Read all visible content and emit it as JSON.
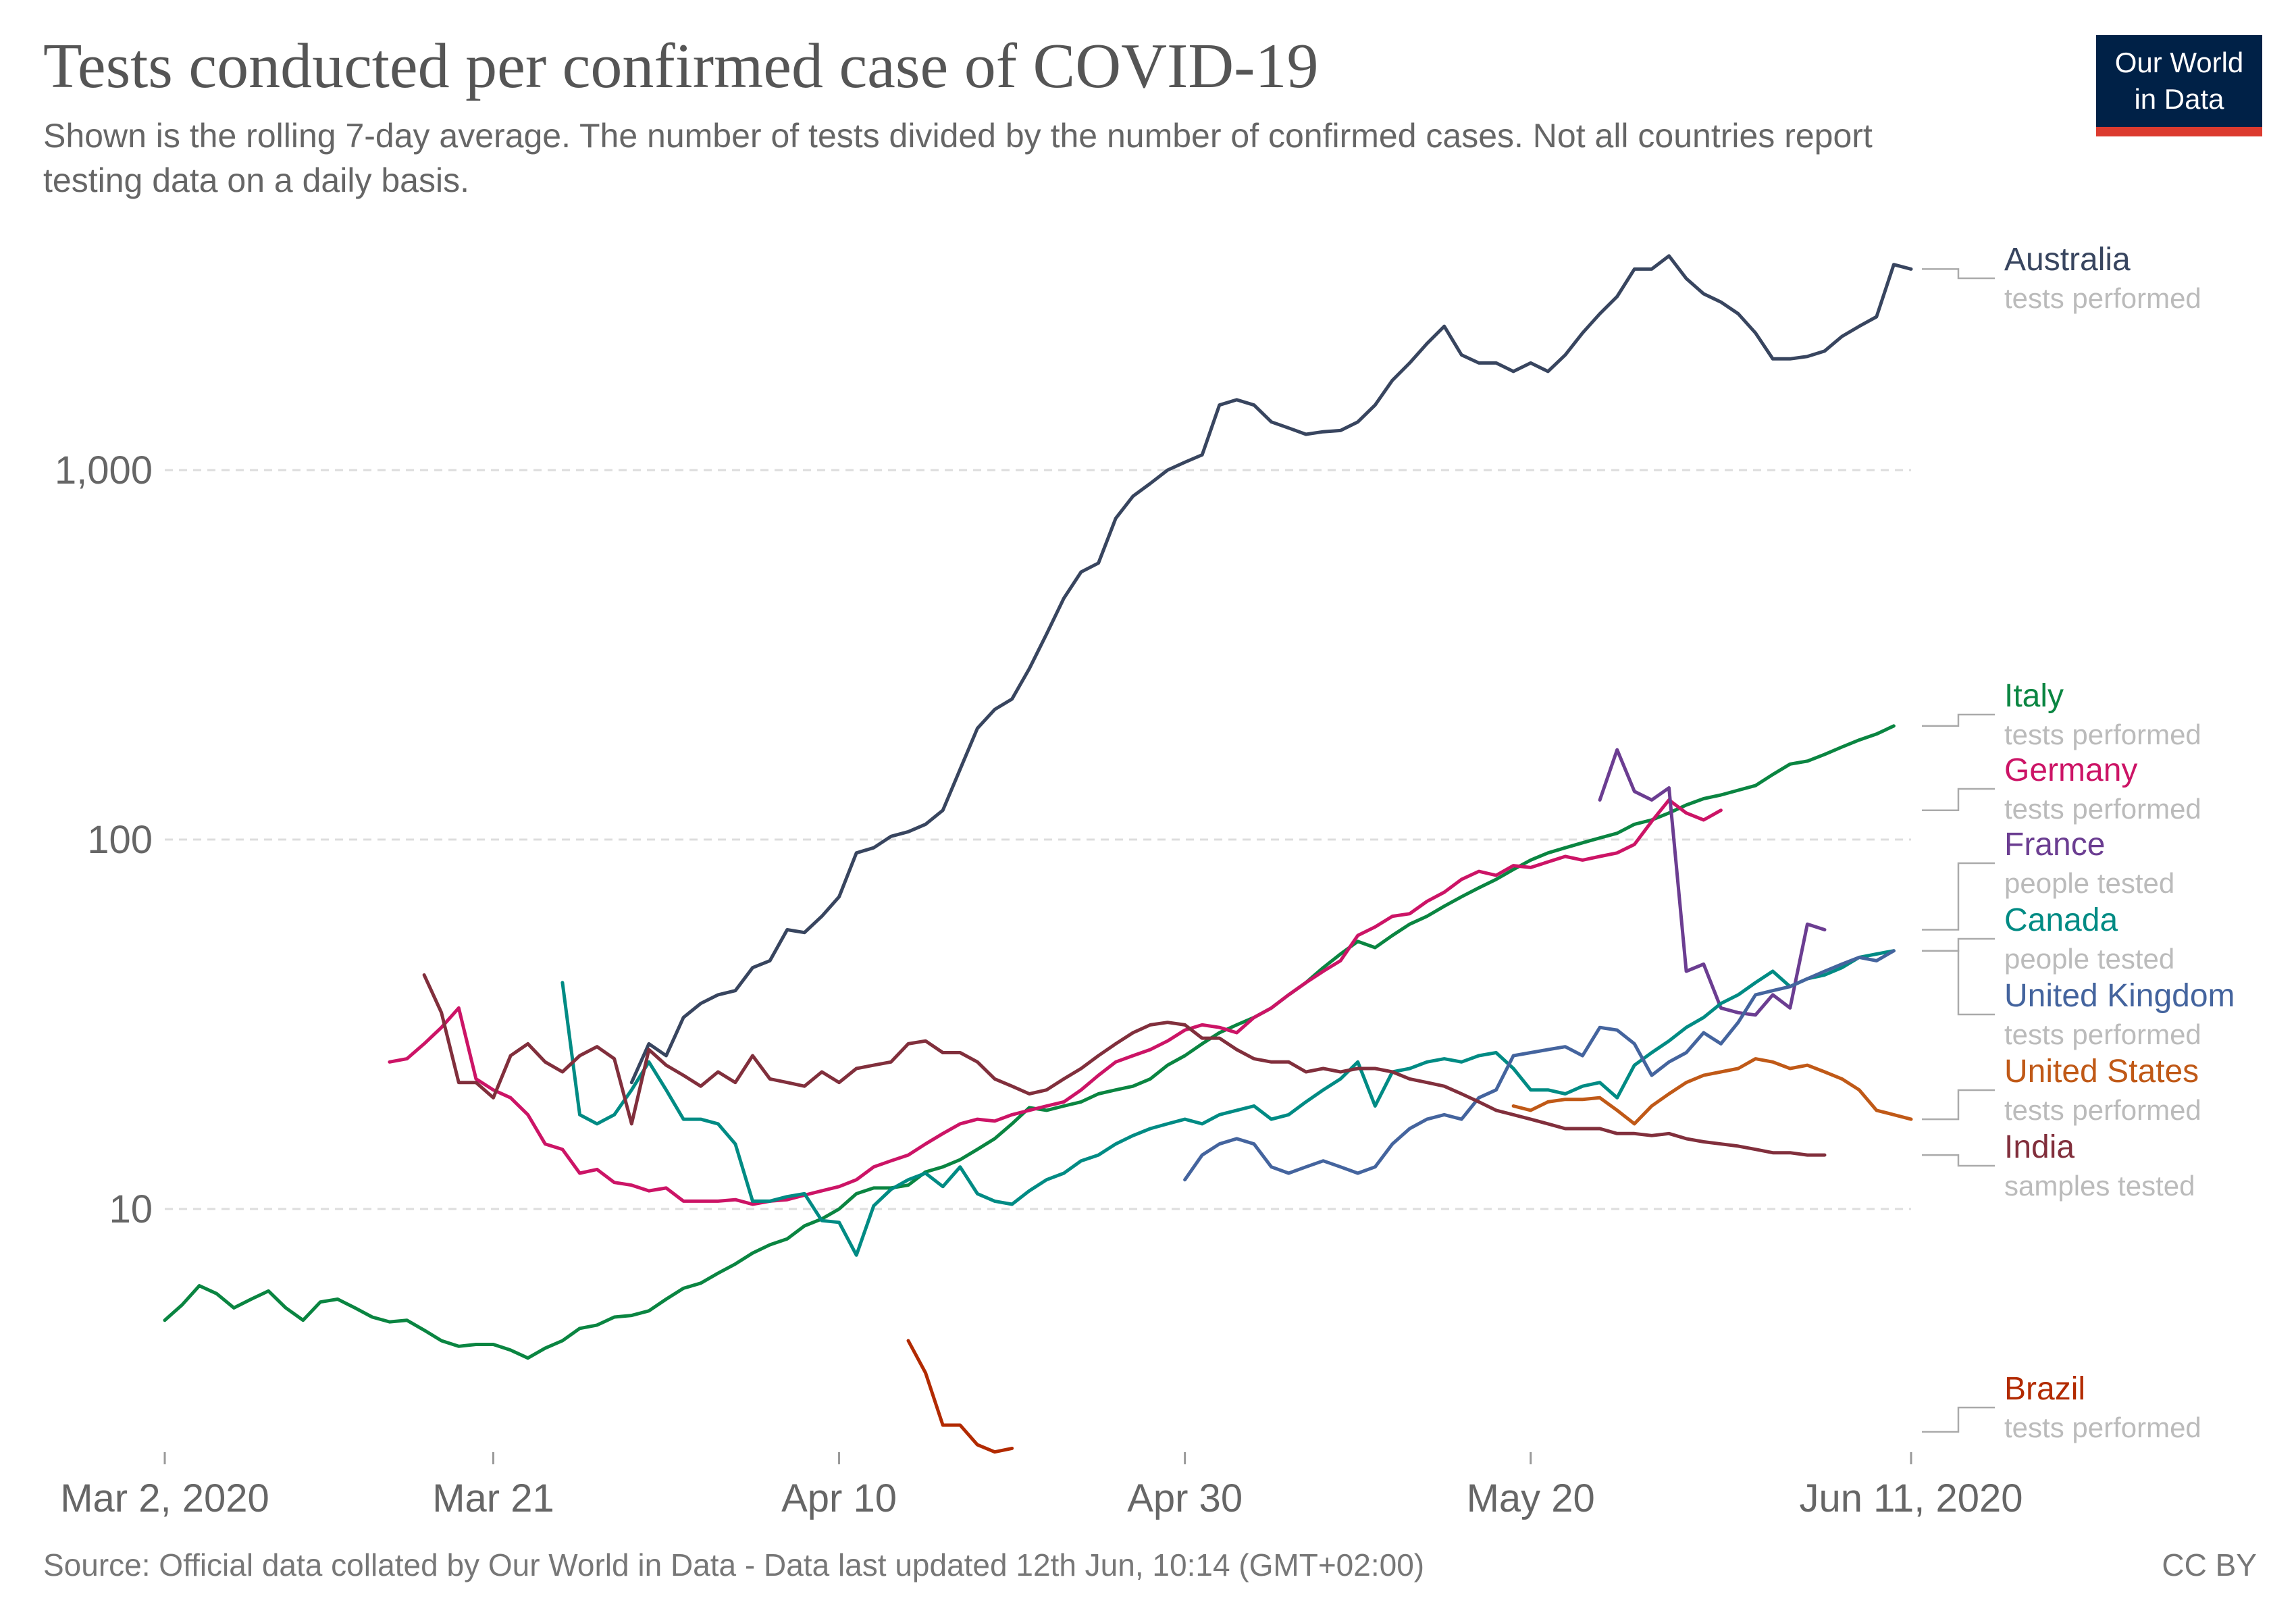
{
  "header": {
    "title": "Tests conducted per confirmed case of COVID-19",
    "subtitle": "Shown is the rolling 7-day average. The number of tests divided by the number of confirmed cases. Not all countries report testing data on a daily basis.",
    "logo_line1": "Our World",
    "logo_line2": "in Data"
  },
  "footer": {
    "source": "Source: Official data collated by Our World in Data - Data last updated 12th Jun, 10:14 (GMT+02:00)",
    "license": "CC BY"
  },
  "colors": {
    "Australia": "#38455f",
    "Italy": "#0a8541",
    "Germany": "#cc1466",
    "France": "#6b3d91",
    "Canada": "#008b84",
    "United Kingdom": "#44649e",
    "United States": "#c05917",
    "India": "#812f3c",
    "Brazil": "#b22a00"
  },
  "chart_data": {
    "type": "line",
    "title": "Tests conducted per confirmed case of COVID-19",
    "y_scale": "log",
    "ylim": [
      2.3,
      5200
    ],
    "y_ticks": [
      {
        "value": 10,
        "label": "10"
      },
      {
        "value": 100,
        "label": "100"
      },
      {
        "value": 1000,
        "label": "1,000"
      }
    ],
    "x_ticks": [
      {
        "date": "2020-03-02",
        "label": "Mar 2, 2020"
      },
      {
        "date": "2020-03-21",
        "label": "Mar 21"
      },
      {
        "date": "2020-04-10",
        "label": "Apr 10"
      },
      {
        "date": "2020-04-30",
        "label": "Apr 30"
      },
      {
        "date": "2020-05-20",
        "label": "May 20"
      },
      {
        "date": "2020-06-11",
        "label": "Jun 11, 2020"
      }
    ],
    "xlim": [
      "2020-03-02",
      "2020-06-11"
    ],
    "grid": "horizontal dashed",
    "legend": "right, labels at line ends",
    "series": [
      {
        "name": "Australia",
        "metric": "tests performed",
        "start": "2020-03-29",
        "values": [
          22,
          28,
          26,
          33,
          36,
          38,
          39,
          45,
          47,
          57,
          56,
          62,
          70,
          92,
          95,
          102,
          105,
          110,
          120,
          155,
          200,
          225,
          240,
          290,
          360,
          450,
          530,
          560,
          740,
          850,
          920,
          1000,
          1050,
          1100,
          1500,
          1550,
          1500,
          1350,
          1300,
          1250,
          1270,
          1280,
          1350,
          1500,
          1750,
          1950,
          2200,
          2450,
          2050,
          1950,
          1950,
          1850,
          1950,
          1850,
          2050,
          2350,
          2650,
          2950,
          3500,
          3500,
          3800,
          3300,
          3000,
          2850,
          2650,
          2350,
          2000,
          2000,
          2030,
          2100,
          2300,
          2450,
          2600,
          3600,
          3500
        ]
      },
      {
        "name": "Italy",
        "metric": "tests performed",
        "start": "2020-03-02",
        "values": [
          5.0,
          5.5,
          6.2,
          5.9,
          5.4,
          5.7,
          6.0,
          5.4,
          5.0,
          5.6,
          5.7,
          5.4,
          5.1,
          4.95,
          5.0,
          4.7,
          4.4,
          4.25,
          4.3,
          4.3,
          4.15,
          3.95,
          4.2,
          4.4,
          4.75,
          4.85,
          5.1,
          5.15,
          5.3,
          5.7,
          6.1,
          6.3,
          6.7,
          7.1,
          7.6,
          8.0,
          8.3,
          9.0,
          9.4,
          10.0,
          11.0,
          11.4,
          11.4,
          11.6,
          12.6,
          13.0,
          13.6,
          14.5,
          15.5,
          17.0,
          18.8,
          18.5,
          19.0,
          19.5,
          20.5,
          21.0,
          21.5,
          22.5,
          24.5,
          26.0,
          28.0,
          30.0,
          31.5,
          33.0,
          35.0,
          38.0,
          41.0,
          45.0,
          49.0,
          53.0,
          51.0,
          55.0,
          59.0,
          62.0,
          66.0,
          70.0,
          74.0,
          78.0,
          83.0,
          88.0,
          92.0,
          95.0,
          98.0,
          101.0,
          104.0,
          110.0,
          113.0,
          118.0,
          124.0,
          129.0,
          132.0,
          136.0,
          140.0,
          150.0,
          160.0,
          163.0,
          170.0,
          178.0,
          186.0,
          193.0,
          203.0
        ]
      },
      {
        "name": "Germany",
        "metric": "tests performed",
        "start": "2020-03-15",
        "values": [
          25.0,
          25.5,
          28.0,
          31.0,
          35.0,
          22.5,
          21.0,
          20.0,
          18.0,
          15.0,
          14.5,
          12.5,
          12.8,
          11.8,
          11.6,
          11.2,
          11.4,
          10.5,
          10.5,
          10.5,
          10.6,
          10.3,
          10.5,
          10.6,
          10.9,
          11.2,
          11.5,
          12.0,
          13.0,
          13.5,
          14.0,
          15.0,
          16.0,
          17.0,
          17.5,
          17.3,
          18.0,
          18.5,
          19.0,
          19.5,
          21.0,
          23.0,
          25.0,
          26.0,
          27.0,
          28.5,
          30.5,
          31.5,
          31.0,
          30.0,
          33.0,
          35.0,
          38.0,
          41.0,
          44.0,
          47.0,
          55.0,
          58.0,
          62.0,
          63.0,
          68.0,
          72.0,
          78.0,
          82.0,
          80.0,
          85.0,
          84.0,
          87.0,
          90.0,
          88.0,
          90.0,
          92.0,
          97.0,
          112.0,
          128.0,
          118.0,
          113.0,
          120.0
        ]
      },
      {
        "name": "France",
        "metric": "people tested",
        "start": "2020-05-24",
        "values": [
          128.0,
          175.0,
          135.0,
          128.0,
          138.0,
          44.0,
          46.0,
          35.0,
          34.0,
          33.5,
          38.0,
          35.0,
          59.0,
          57.0
        ]
      },
      {
        "name": "Canada",
        "metric": "people tested",
        "start": "2020-03-25",
        "values": [
          41.0,
          18.0,
          17.0,
          18.0,
          21.0,
          25.0,
          21.0,
          17.5,
          17.5,
          17.0,
          15.0,
          10.5,
          10.5,
          10.8,
          11.0,
          9.3,
          9.2,
          7.5,
          10.2,
          11.3,
          12.0,
          12.5,
          11.5,
          13.0,
          11.0,
          10.5,
          10.3,
          11.2,
          12.0,
          12.5,
          13.5,
          14.0,
          15.0,
          15.8,
          16.5,
          17.0,
          17.5,
          17.0,
          18.0,
          18.5,
          19.0,
          17.5,
          18.0,
          19.5,
          21.0,
          22.5,
          25.0,
          19.0,
          23.5,
          24.0,
          25.0,
          25.5,
          25.0,
          26.0,
          26.5,
          24.0,
          21.0,
          21.0,
          20.5,
          21.5,
          22.0,
          20.0,
          24.5,
          26.5,
          28.5,
          31.0,
          33.0,
          36.0,
          38.0,
          41.0,
          44.0,
          40.0,
          42.0,
          43.0,
          45.0,
          48.0,
          49.0,
          50.0
        ]
      },
      {
        "name": "United Kingdom",
        "metric": "tests performed",
        "start": "2020-04-30",
        "values": [
          12.0,
          14.0,
          15.0,
          15.5,
          15.0,
          13.0,
          12.5,
          13.0,
          13.5,
          13.0,
          12.5,
          13.0,
          15.0,
          16.5,
          17.5,
          18.0,
          17.5,
          20.0,
          21.0,
          26.0,
          26.5,
          27.0,
          27.5,
          26.0,
          31.0,
          30.5,
          28.0,
          23.0,
          25.0,
          26.5,
          30.0,
          28.0,
          32.0,
          38.0,
          39.0,
          40.0,
          42.0,
          44.0,
          46.0,
          48.0,
          47.0,
          50.0
        ]
      },
      {
        "name": "United States",
        "metric": "tests performed",
        "start": "2020-05-19",
        "values": [
          19.0,
          18.5,
          19.5,
          19.8,
          19.8,
          20.0,
          18.5,
          17.0,
          19.0,
          20.5,
          22.0,
          23.0,
          23.5,
          24.0,
          25.5,
          25.0,
          24.0,
          24.5,
          23.5,
          22.5,
          21.0,
          18.5,
          18.0,
          17.5
        ]
      },
      {
        "name": "India",
        "metric": "samples tested",
        "start": "2020-03-17",
        "values": [
          43.0,
          34.0,
          22.0,
          22.0,
          20.0,
          26.0,
          28.0,
          25.0,
          23.5,
          26.0,
          27.5,
          25.5,
          17.0,
          27.0,
          24.5,
          23.0,
          21.5,
          23.5,
          22.0,
          26.0,
          22.5,
          22.0,
          21.5,
          23.5,
          22.0,
          24.0,
          24.5,
          25.0,
          28.0,
          28.5,
          26.5,
          26.5,
          25.0,
          22.5,
          21.5,
          20.5,
          21.0,
          22.5,
          24.0,
          26.0,
          28.0,
          30.0,
          31.5,
          32.0,
          31.5,
          29.0,
          29.0,
          27.0,
          25.5,
          25.0,
          25.0,
          23.5,
          24.0,
          23.5,
          24.0,
          24.0,
          23.5,
          22.5,
          22.0,
          21.5,
          20.5,
          19.5,
          18.5,
          18.0,
          17.5,
          17.0,
          16.5,
          16.5,
          16.5,
          16.0,
          16.0,
          15.8,
          16.0,
          15.5,
          15.2,
          15.0,
          14.8,
          14.5,
          14.2,
          14.2,
          14.0,
          14.0
        ]
      },
      {
        "name": "Brazil",
        "metric": "tests performed",
        "start": "2020-04-14",
        "values": [
          4.4,
          3.6,
          2.6,
          2.6,
          2.3,
          2.2,
          2.25
        ]
      }
    ]
  }
}
